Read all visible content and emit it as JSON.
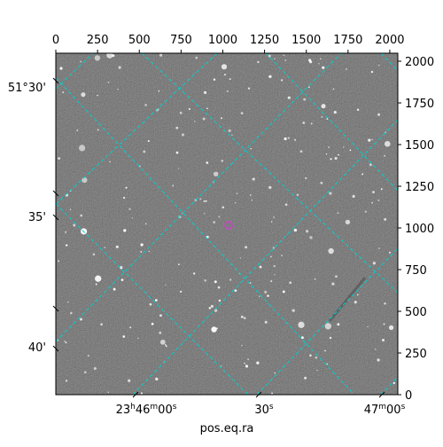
{
  "plot": {
    "pixel_axis_top": {
      "ticks": [
        "0",
        "250",
        "500",
        "750",
        "1000",
        "1250",
        "1500",
        "1750",
        "2000"
      ]
    },
    "pixel_axis_right": {
      "ticks": [
        "0",
        "250",
        "500",
        "750",
        "1000",
        "1250",
        "1500",
        "1750",
        "2000"
      ]
    },
    "dec_axis_left": {
      "ticks": [
        "51°30'",
        "35'",
        "40'"
      ]
    },
    "ra_axis_bottom": {
      "ticks": [
        {
          "main": "23",
          "sup1": "h",
          "mid": "46",
          "sup2": "m",
          "tail": "00",
          "sup3": "s"
        },
        {
          "main": "30",
          "sup1": "s"
        },
        {
          "main": "47",
          "sup1": "m",
          "mid": "00",
          "sup2": "s"
        }
      ],
      "label": "pos.eq.ra"
    },
    "colors": {
      "background_sky": "#6e6e6e",
      "frame": "#000000",
      "grid": "#00d0d0",
      "marker": "#d040d0",
      "stars": "#ffffff"
    },
    "elements": {
      "image_type": "astronomical sky image with WCS coordinate grid",
      "marker_shape": "circle"
    }
  }
}
